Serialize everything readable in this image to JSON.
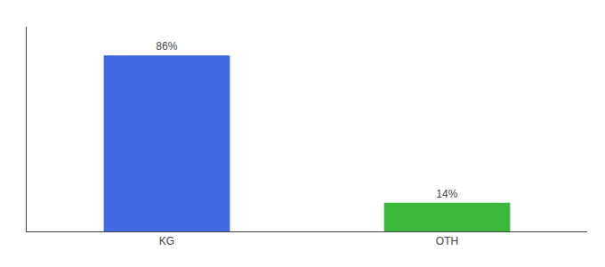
{
  "chart_data": {
    "type": "bar",
    "categories": [
      "KG",
      "OTH"
    ],
    "values": [
      86,
      14
    ],
    "value_labels": [
      "86%",
      "14%"
    ],
    "data_labels": true,
    "colors": [
      "#4169E1",
      "#3CB83C"
    ],
    "ylim": [
      0,
      100
    ],
    "grid": false,
    "tick_labels": "x"
  }
}
